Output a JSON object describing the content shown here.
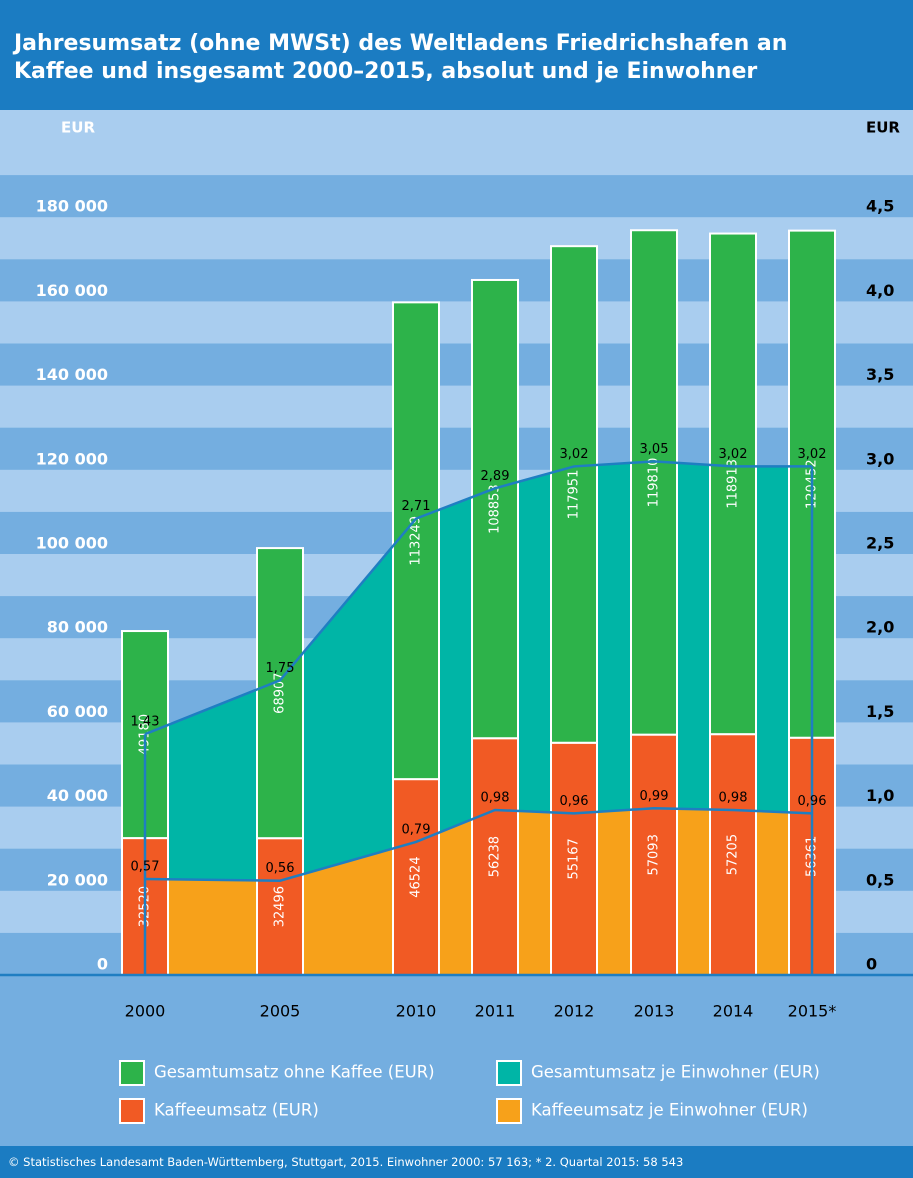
{
  "chart_data": {
    "type": "bar_area",
    "title": "Jahresumsatz (ohne MWSt) des Weltladens Friedrichshafen an Kaffee und insgesamt 2000–2015, absolut und je Einwohner",
    "y_label": "EUR",
    "y2_label": "EUR",
    "categories": [
      "2000",
      "2005",
      "2010",
      "2011",
      "2012",
      "2013",
      "2014",
      "2015*"
    ],
    "series": [
      {
        "name": "Gesamtumsatz ohne Kaffee (EUR)",
        "type": "bar",
        "color": "#2db34a",
        "values": [
          49180,
          68907,
          113249,
          108853,
          117951,
          119810,
          118913,
          120452
        ]
      },
      {
        "name": "Gesamtumsatz je Einwohner (EUR)",
        "type": "area",
        "axis": "y2",
        "color": "#00b5a6",
        "values": [
          1.43,
          1.75,
          2.71,
          2.89,
          3.02,
          3.05,
          3.02,
          3.02
        ],
        "value_labels": [
          "1,43",
          "1,75",
          "2,71",
          "2,89",
          "3,02",
          "3,05",
          "3,02",
          "3,02"
        ]
      },
      {
        "name": "Kaffeeumsatz (EUR)",
        "type": "bar",
        "color": "#f15a24",
        "values": [
          32520,
          32496,
          46524,
          56238,
          55167,
          57093,
          57205,
          56361
        ]
      },
      {
        "name": "Kaffeeumsatz je Einwohner (EUR)",
        "type": "area",
        "axis": "y2",
        "color": "#f7a11a",
        "values": [
          0.57,
          0.56,
          0.79,
          0.98,
          0.96,
          0.99,
          0.98,
          0.96
        ],
        "value_labels": [
          "0,57",
          "0,56",
          "0,79",
          "0,98",
          "0,96",
          "0,99",
          "0,98",
          "0,96"
        ]
      }
    ],
    "ylim": [
      0,
      200000
    ],
    "yticks": [
      0,
      {
        "value": 20000,
        "label": "20 000"
      },
      {
        "value": 40000,
        "label": "40 000"
      },
      {
        "value": 60000,
        "label": "60 000"
      },
      {
        "value": 80000,
        "label": "80 000"
      },
      {
        "value": 100000,
        "label": "100 000"
      },
      {
        "value": 120000,
        "label": "120 000"
      },
      {
        "value": 140000,
        "label": "140 000"
      },
      {
        "value": 160000,
        "label": "160 000"
      },
      {
        "value": 180000,
        "label": "180 000"
      }
    ],
    "y2lim": [
      0,
      5
    ],
    "y2ticks": [
      0,
      {
        "value": 0.5,
        "label": "0,5"
      },
      {
        "value": 1,
        "label": "1,0"
      },
      {
        "value": 1.5,
        "label": "1,5"
      },
      {
        "value": 2,
        "label": "2,0"
      },
      {
        "value": 2.5,
        "label": "2,5"
      },
      {
        "value": 3,
        "label": "3,0"
      },
      {
        "value": 3.5,
        "label": "3,5"
      },
      {
        "value": 4,
        "label": "4,0"
      },
      {
        "value": 4.5,
        "label": "4,5"
      }
    ],
    "line_color": "#1f7ec2",
    "source": "© Statistisches Landesamt Baden-Württemberg, Stuttgart, 2015. Einwohner 2000: 57 163; * 2. Quartal 2015: 58 543"
  }
}
